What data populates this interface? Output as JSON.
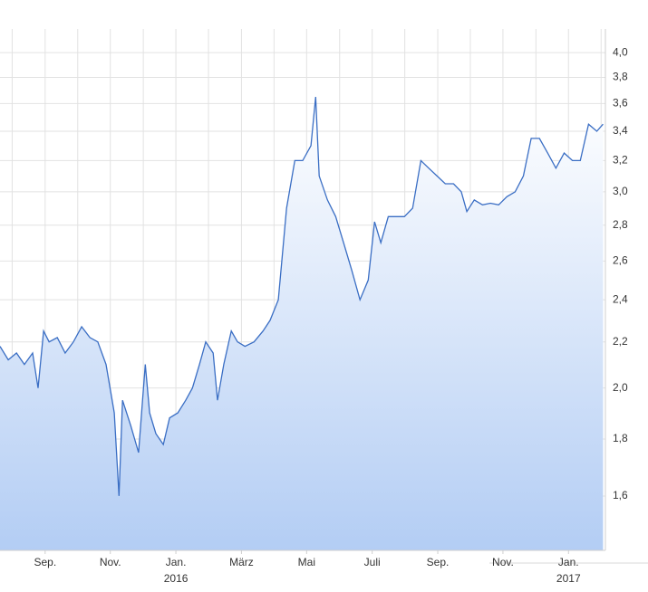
{
  "chart_data": {
    "type": "area",
    "log_y": true,
    "grid": true,
    "x": [
      2015.552,
      2015.573,
      2015.594,
      2015.614,
      2015.635,
      2015.649,
      2015.663,
      2015.677,
      2015.698,
      2015.718,
      2015.739,
      2015.76,
      2015.781,
      2015.801,
      2015.822,
      2015.843,
      2015.855,
      2015.864,
      2015.885,
      2015.905,
      2015.922,
      2015.933,
      2015.949,
      2015.968,
      2015.984,
      2016.005,
      2016.025,
      2016.042,
      2016.06,
      2016.076,
      2016.095,
      2016.106,
      2016.122,
      2016.141,
      2016.157,
      2016.176,
      2016.199,
      2016.222,
      2016.24,
      2016.261,
      2016.282,
      2016.303,
      2016.323,
      2016.344,
      2016.356,
      2016.365,
      2016.386,
      2016.407,
      2016.427,
      2016.448,
      2016.469,
      2016.49,
      2016.506,
      2016.522,
      2016.541,
      2016.561,
      2016.582,
      2016.603,
      2016.624,
      2016.644,
      2016.665,
      2016.686,
      2016.707,
      2016.727,
      2016.741,
      2016.76,
      2016.781,
      2016.801,
      2016.822,
      2016.843,
      2016.864,
      2016.885,
      2016.905,
      2016.926,
      2016.947,
      2016.968,
      2016.989,
      2017.01,
      2017.03,
      2017.051,
      2017.072,
      2017.088
    ],
    "series": [
      {
        "color": "#3a6ec4",
        "values": [
          2.18,
          2.12,
          2.15,
          2.1,
          2.15,
          2.0,
          2.25,
          2.2,
          2.22,
          2.15,
          2.2,
          2.27,
          2.22,
          2.2,
          2.1,
          1.9,
          1.6,
          1.95,
          1.85,
          1.75,
          2.1,
          1.9,
          1.82,
          1.78,
          1.88,
          1.9,
          1.95,
          2.0,
          2.1,
          2.2,
          2.15,
          1.95,
          2.1,
          2.25,
          2.2,
          2.18,
          2.2,
          2.25,
          2.3,
          2.4,
          2.9,
          3.2,
          3.2,
          3.3,
          3.65,
          3.1,
          2.95,
          2.85,
          2.7,
          2.55,
          2.4,
          2.5,
          2.82,
          2.7,
          2.85,
          2.85,
          2.85,
          2.9,
          3.2,
          3.15,
          3.1,
          3.05,
          3.05,
          3.0,
          2.88,
          2.95,
          2.92,
          2.93,
          2.92,
          2.97,
          3.0,
          3.1,
          3.35,
          3.35,
          3.25,
          3.15,
          3.25,
          3.2,
          3.2,
          3.45,
          3.4,
          3.45
        ]
      }
    ],
    "xlim": [
      2015.552,
      2017.094
    ],
    "xticks": [
      {
        "value": 2015.667,
        "label": "Sep."
      },
      {
        "value": 2015.833,
        "label": "Nov."
      },
      {
        "value": 2016.0,
        "label": "Jan.",
        "year": "2016"
      },
      {
        "value": 2016.167,
        "label": "März"
      },
      {
        "value": 2016.333,
        "label": "Mai"
      },
      {
        "value": 2016.5,
        "label": "Juli"
      },
      {
        "value": 2016.667,
        "label": "Sep."
      },
      {
        "value": 2016.833,
        "label": "Nov."
      },
      {
        "value": 2017.0,
        "label": "Jan.",
        "year": "2017"
      }
    ],
    "xgrid": [
      2015.583,
      2015.667,
      2015.75,
      2015.833,
      2015.917,
      2016.0,
      2016.083,
      2016.167,
      2016.25,
      2016.333,
      2016.417,
      2016.5,
      2016.583,
      2016.667,
      2016.75,
      2016.833,
      2016.917,
      2017.0,
      2017.083
    ],
    "ylim": [
      1.43,
      4.2
    ],
    "yticks": [
      {
        "value": 1.6,
        "label": "1,6"
      },
      {
        "value": 1.8,
        "label": "1,8"
      },
      {
        "value": 2.0,
        "label": "2,0"
      },
      {
        "value": 2.2,
        "label": "2,2"
      },
      {
        "value": 2.4,
        "label": "2,4"
      },
      {
        "value": 2.6,
        "label": "2,6"
      },
      {
        "value": 2.8,
        "label": "2,8"
      },
      {
        "value": 3.0,
        "label": "3,0"
      },
      {
        "value": 3.2,
        "label": "3,2"
      },
      {
        "value": 3.4,
        "label": "3,4"
      },
      {
        "value": 3.6,
        "label": "3,6"
      },
      {
        "value": 3.8,
        "label": "3,8"
      },
      {
        "value": 4.0,
        "label": "4,0"
      }
    ]
  }
}
